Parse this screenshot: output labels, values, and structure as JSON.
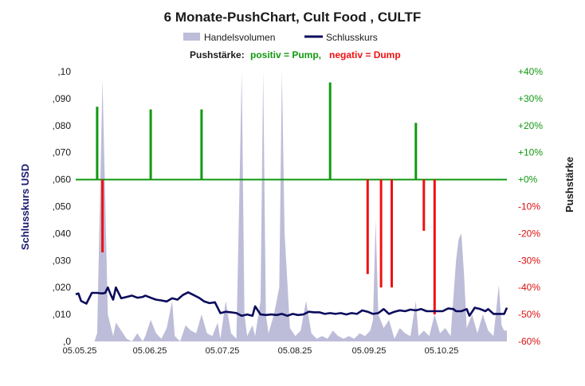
{
  "chart_data": {
    "type": "line",
    "title": "6 Monate-PushChart,  Cult Food , CULTF",
    "legend": {
      "volume_label": "Handelsvolumen",
      "price_label": "Schlusskurs",
      "push_prefix": "Pushstärke:",
      "push_positive": "positiv = Pump,",
      "push_negative": "negativ = Dump"
    },
    "ylabel_left": "Schlusskurs USD",
    "ylabel_right": "Pushstärke",
    "ylim_left": [
      0,
      0.1
    ],
    "ylim_right": [
      -60,
      40
    ],
    "y_left_ticks": [
      ",0",
      ",010",
      ",020",
      ",030",
      ",040",
      ",050",
      ",060",
      ",070",
      ",080",
      ",090",
      ",10"
    ],
    "y_right_ticks": [
      "-60%",
      "-50%",
      "-40%",
      "-30%",
      "-20%",
      "-10%",
      "+0%",
      "+10%",
      "+20%",
      "+30%",
      "+40%"
    ],
    "x_ticks": [
      "05.05.25",
      "05.06.25",
      "05.07.25",
      "05.08.25",
      "05.09.25",
      "05.10.25"
    ],
    "x_range_days": [
      0,
      161
    ],
    "colors": {
      "volume": "#bdbdd9",
      "price": "#0b0b5c",
      "pump": "#119911",
      "dump": "#ee1111",
      "zero_line": "#119911",
      "title": "#1a1a1a",
      "left_axis_label": "#1a1a6e",
      "right_tick": "#119911",
      "right_tick_neg": "#dd1111"
    },
    "volume_series": [
      [
        0,
        0
      ],
      [
        7,
        0
      ],
      [
        8,
        0.003
      ],
      [
        10,
        0.097
      ],
      [
        12,
        0.01
      ],
      [
        14,
        0.002
      ],
      [
        15,
        0.007
      ],
      [
        17,
        0.004
      ],
      [
        19,
        0.001
      ],
      [
        21,
        0
      ],
      [
        23,
        0.003
      ],
      [
        25,
        0
      ],
      [
        26,
        0.002
      ],
      [
        28,
        0.008
      ],
      [
        30,
        0.003
      ],
      [
        32,
        0.001
      ],
      [
        34,
        0.005
      ],
      [
        36,
        0.015
      ],
      [
        37,
        0.002
      ],
      [
        39,
        0
      ],
      [
        41,
        0.006
      ],
      [
        43,
        0.004
      ],
      [
        45,
        0.003
      ],
      [
        47,
        0.01
      ],
      [
        49,
        0.003
      ],
      [
        51,
        0.002
      ],
      [
        53,
        0.007
      ],
      [
        54,
        0.001
      ],
      [
        56,
        0.015
      ],
      [
        58,
        0.003
      ],
      [
        60,
        0.001
      ],
      [
        61,
        0.05
      ],
      [
        62,
        0.1
      ],
      [
        63,
        0.01
      ],
      [
        64,
        0.002
      ],
      [
        66,
        0.006
      ],
      [
        67,
        0.002
      ],
      [
        69,
        0.015
      ],
      [
        70,
        0.1
      ],
      [
        71,
        0.01
      ],
      [
        72,
        0.003
      ],
      [
        74,
        0.01
      ],
      [
        76,
        0.02
      ],
      [
        77,
        0.1
      ],
      [
        78,
        0.04
      ],
      [
        80,
        0.005
      ],
      [
        82,
        0.002
      ],
      [
        84,
        0.004
      ],
      [
        86,
        0.015
      ],
      [
        88,
        0.003
      ],
      [
        90,
        0.001
      ],
      [
        92,
        0.002
      ],
      [
        94,
        0.001
      ],
      [
        96,
        0.004
      ],
      [
        98,
        0.002
      ],
      [
        100,
        0.001
      ],
      [
        102,
        0.002
      ],
      [
        104,
        0.001
      ],
      [
        106,
        0.003
      ],
      [
        108,
        0.002
      ],
      [
        110,
        0.004
      ],
      [
        111,
        0.008
      ],
      [
        112,
        0.045
      ],
      [
        113,
        0.01
      ],
      [
        115,
        0.005
      ],
      [
        117,
        0.008
      ],
      [
        119,
        0.001
      ],
      [
        121,
        0.005
      ],
      [
        123,
        0.003
      ],
      [
        125,
        0.002
      ],
      [
        127,
        0.015
      ],
      [
        128,
        0.002
      ],
      [
        130,
        0.004
      ],
      [
        132,
        0.002
      ],
      [
        134,
        0.01
      ],
      [
        136,
        0.003
      ],
      [
        138,
        0.005
      ],
      [
        140,
        0.002
      ],
      [
        142,
        0.03
      ],
      [
        143,
        0.038
      ],
      [
        144,
        0.04
      ],
      [
        145,
        0.025
      ],
      [
        146,
        0.005
      ],
      [
        148,
        0.01
      ],
      [
        150,
        0.003
      ],
      [
        152,
        0.01
      ],
      [
        154,
        0.004
      ],
      [
        156,
        0.002
      ],
      [
        158,
        0.021
      ],
      [
        159,
        0.006
      ],
      [
        160,
        0.004
      ],
      [
        161,
        0.004
      ],
      [
        161,
        0
      ]
    ],
    "price_series": [
      [
        0,
        0.0175
      ],
      [
        1,
        0.0178
      ],
      [
        2,
        0.015
      ],
      [
        4,
        0.014
      ],
      [
        6,
        0.018
      ],
      [
        8,
        0.018
      ],
      [
        10,
        0.0178
      ],
      [
        11,
        0.018
      ],
      [
        12,
        0.02
      ],
      [
        13,
        0.0175
      ],
      [
        14,
        0.0155
      ],
      [
        15,
        0.02
      ],
      [
        17,
        0.016
      ],
      [
        19,
        0.0165
      ],
      [
        21,
        0.017
      ],
      [
        23,
        0.0162
      ],
      [
        25,
        0.0165
      ],
      [
        26,
        0.017
      ],
      [
        28,
        0.0162
      ],
      [
        30,
        0.0155
      ],
      [
        32,
        0.0152
      ],
      [
        34,
        0.0148
      ],
      [
        36,
        0.016
      ],
      [
        38,
        0.0155
      ],
      [
        40,
        0.0172
      ],
      [
        42,
        0.0182
      ],
      [
        44,
        0.0172
      ],
      [
        46,
        0.0162
      ],
      [
        48,
        0.0148
      ],
      [
        50,
        0.0142
      ],
      [
        52,
        0.0145
      ],
      [
        54,
        0.0105
      ],
      [
        56,
        0.011
      ],
      [
        58,
        0.0108
      ],
      [
        60,
        0.0105
      ],
      [
        62,
        0.0095
      ],
      [
        64,
        0.01
      ],
      [
        66,
        0.0095
      ],
      [
        67,
        0.013
      ],
      [
        69,
        0.01
      ],
      [
        71,
        0.0098
      ],
      [
        73,
        0.01
      ],
      [
        75,
        0.0098
      ],
      [
        77,
        0.0102
      ],
      [
        79,
        0.0095
      ],
      [
        81,
        0.0102
      ],
      [
        83,
        0.0098
      ],
      [
        85,
        0.01
      ],
      [
        87,
        0.011
      ],
      [
        89,
        0.0108
      ],
      [
        91,
        0.0108
      ],
      [
        93,
        0.0102
      ],
      [
        95,
        0.0105
      ],
      [
        97,
        0.0102
      ],
      [
        99,
        0.0105
      ],
      [
        101,
        0.01
      ],
      [
        103,
        0.0105
      ],
      [
        105,
        0.0102
      ],
      [
        107,
        0.0115
      ],
      [
        109,
        0.011
      ],
      [
        111,
        0.0102
      ],
      [
        113,
        0.0105
      ],
      [
        115,
        0.012
      ],
      [
        117,
        0.0102
      ],
      [
        119,
        0.011
      ],
      [
        121,
        0.0115
      ],
      [
        123,
        0.0112
      ],
      [
        125,
        0.0118
      ],
      [
        127,
        0.0115
      ],
      [
        129,
        0.012
      ],
      [
        131,
        0.0112
      ],
      [
        133,
        0.0112
      ],
      [
        135,
        0.0112
      ],
      [
        137,
        0.0112
      ],
      [
        139,
        0.0122
      ],
      [
        141,
        0.012
      ],
      [
        142,
        0.0112
      ],
      [
        144,
        0.0112
      ],
      [
        146,
        0.012
      ],
      [
        147,
        0.0095
      ],
      [
        149,
        0.0125
      ],
      [
        151,
        0.012
      ],
      [
        153,
        0.0112
      ],
      [
        154,
        0.012
      ],
      [
        156,
        0.0102
      ],
      [
        158,
        0.0102
      ],
      [
        160,
        0.0102
      ],
      [
        161,
        0.0125
      ]
    ],
    "push_bars": [
      {
        "x": 8,
        "value": 27
      },
      {
        "x": 10,
        "value": -27
      },
      {
        "x": 28,
        "value": 26
      },
      {
        "x": 47,
        "value": 26
      },
      {
        "x": 95,
        "value": 36
      },
      {
        "x": 109,
        "value": -35
      },
      {
        "x": 114,
        "value": -40
      },
      {
        "x": 118,
        "value": -40
      },
      {
        "x": 127,
        "value": 21
      },
      {
        "x": 130,
        "value": -19
      },
      {
        "x": 134,
        "value": -50
      }
    ]
  }
}
